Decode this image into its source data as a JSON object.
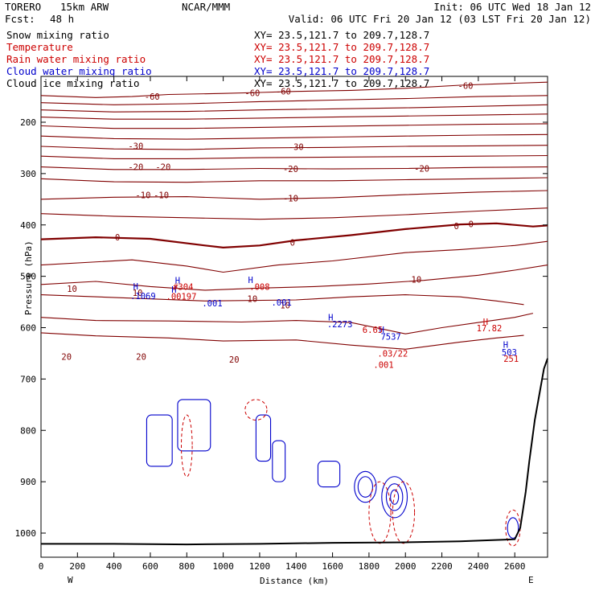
{
  "header": {
    "model": "TORERO",
    "resolution": "15km ARW",
    "org": "NCAR/MMM",
    "init": "Init: 06 UTC Wed 18 Jan 12",
    "fcst_label": "Fcst:",
    "fcst_value": "48 h",
    "valid": "Valid: 06 UTC Fri 20 Jan 12 (03 LST Fri 20 Jan 12)"
  },
  "legend": [
    {
      "label": "Snow mixing ratio",
      "color": "#000000",
      "xy": "XY=  23.5,121.7 to 209.7,128.7",
      "xy_color": "#000000"
    },
    {
      "label": "Temperature",
      "color": "#cc0000",
      "xy": "XY=  23.5,121.7 to 209.7,128.7",
      "xy_color": "#cc0000"
    },
    {
      "label": "Rain water mixing ratio",
      "color": "#cc0000",
      "xy": "XY=  23.5,121.7 to 209.7,128.7",
      "xy_color": "#cc0000"
    },
    {
      "label": "Cloud water mixing ratio",
      "color": "#0000cc",
      "xy": "XY=  23.5,121.7 to 209.7,128.7",
      "xy_color": "#0000cc"
    },
    {
      "label": "Cloud ice mixing ratio",
      "color": "#000000",
      "xy": "XY=  23.5,121.7 to 209.7,128.7",
      "xy_color": "#000000"
    }
  ],
  "chart_data": {
    "type": "cross-section contour",
    "xlabel": "Distance (km)",
    "ylabel": "Pressure (hPa)",
    "xlim": [
      0,
      2780
    ],
    "ylim": [
      1050,
      120
    ],
    "x_ticks": [
      "0",
      "200",
      "400",
      "600",
      "800",
      "1000",
      "1200",
      "1400",
      "1600",
      "1800",
      "2000",
      "2200",
      "2400",
      "2600"
    ],
    "x_tick_values": [
      0,
      200,
      400,
      600,
      800,
      1000,
      1200,
      1400,
      1600,
      1800,
      2000,
      2200,
      2400,
      2600
    ],
    "y_ticks": [
      "200",
      "300",
      "400",
      "500",
      "600",
      "700",
      "800",
      "900",
      "1000"
    ],
    "y_tick_values": [
      200,
      300,
      400,
      500,
      600,
      700,
      800,
      900,
      1000
    ],
    "x_end_labels": {
      "left": "W",
      "right": "E"
    },
    "colors": {
      "temperature": "#800000",
      "cloud_water": "#0000cc",
      "rain": "#cc0000",
      "terrain": "#000000"
    },
    "temperature_isotherms": [
      {
        "level": "-60",
        "points": [
          [
            0,
            148
          ],
          [
            300,
            152
          ],
          [
            500,
            150
          ],
          [
            700,
            146
          ],
          [
            1000,
            144
          ],
          [
            1200,
            142
          ],
          [
            1400,
            140
          ],
          [
            1700,
            138
          ],
          [
            2000,
            134
          ],
          [
            2300,
            128
          ],
          [
            2600,
            124
          ],
          [
            2780,
            122
          ]
        ]
      },
      {
        "level": "-55",
        "points": [
          [
            0,
            162
          ],
          [
            400,
            166
          ],
          [
            800,
            164
          ],
          [
            1200,
            160
          ],
          [
            1600,
            157
          ],
          [
            2000,
            154
          ],
          [
            2400,
            150
          ],
          [
            2780,
            148
          ]
        ]
      },
      {
        "level": "-50",
        "points": [
          [
            0,
            176
          ],
          [
            400,
            180
          ],
          [
            800,
            179
          ],
          [
            1200,
            176
          ],
          [
            1600,
            174
          ],
          [
            2000,
            172
          ],
          [
            2400,
            169
          ],
          [
            2780,
            166
          ]
        ]
      },
      {
        "level": "-45",
        "points": [
          [
            0,
            190
          ],
          [
            400,
            194
          ],
          [
            800,
            194
          ],
          [
            1200,
            192
          ],
          [
            1600,
            190
          ],
          [
            2000,
            188
          ],
          [
            2400,
            186
          ],
          [
            2780,
            184
          ]
        ]
      },
      {
        "level": "-40",
        "points": [
          [
            0,
            207
          ],
          [
            400,
            212
          ],
          [
            800,
            212
          ],
          [
            1200,
            210
          ],
          [
            1600,
            208
          ],
          [
            2000,
            206
          ],
          [
            2400,
            204
          ],
          [
            2780,
            203
          ]
        ]
      },
      {
        "level": "-35",
        "points": [
          [
            0,
            227
          ],
          [
            400,
            232
          ],
          [
            800,
            233
          ],
          [
            1200,
            231
          ],
          [
            1600,
            229
          ],
          [
            2000,
            227
          ],
          [
            2400,
            225
          ],
          [
            2780,
            224
          ]
        ]
      },
      {
        "level": "-30",
        "points": [
          [
            0,
            247
          ],
          [
            400,
            252
          ],
          [
            800,
            253
          ],
          [
            1200,
            250
          ],
          [
            1600,
            249
          ],
          [
            2000,
            247
          ],
          [
            2400,
            246
          ],
          [
            2780,
            245
          ]
        ]
      },
      {
        "level": "-25",
        "points": [
          [
            0,
            266
          ],
          [
            400,
            271
          ],
          [
            800,
            271
          ],
          [
            1200,
            269
          ],
          [
            1600,
            268
          ],
          [
            2000,
            267
          ],
          [
            2400,
            266
          ],
          [
            2780,
            265
          ]
        ]
      },
      {
        "level": "-20",
        "points": [
          [
            0,
            287
          ],
          [
            400,
            292
          ],
          [
            800,
            292
          ],
          [
            1200,
            290
          ],
          [
            1600,
            291
          ],
          [
            2000,
            290
          ],
          [
            2400,
            288
          ],
          [
            2780,
            287
          ]
        ]
      },
      {
        "level": "-15",
        "points": [
          [
            0,
            310
          ],
          [
            400,
            316
          ],
          [
            800,
            317
          ],
          [
            1200,
            314
          ],
          [
            1600,
            314
          ],
          [
            2000,
            312
          ],
          [
            2400,
            310
          ],
          [
            2780,
            308
          ]
        ]
      },
      {
        "level": "-10",
        "points": [
          [
            0,
            350
          ],
          [
            400,
            346
          ],
          [
            800,
            345
          ],
          [
            1200,
            350
          ],
          [
            1600,
            347
          ],
          [
            2000,
            341
          ],
          [
            2400,
            336
          ],
          [
            2780,
            333
          ]
        ]
      },
      {
        "level": "-5",
        "points": [
          [
            0,
            378
          ],
          [
            400,
            383
          ],
          [
            800,
            386
          ],
          [
            1200,
            389
          ],
          [
            1600,
            386
          ],
          [
            2000,
            380
          ],
          [
            2400,
            373
          ],
          [
            2780,
            367
          ]
        ]
      },
      {
        "level": "0",
        "points": [
          [
            0,
            428
          ],
          [
            300,
            424
          ],
          [
            600,
            427
          ],
          [
            900,
            440
          ],
          [
            1000,
            444
          ],
          [
            1200,
            440
          ],
          [
            1400,
            430
          ],
          [
            1700,
            420
          ],
          [
            2000,
            408
          ],
          [
            2300,
            399
          ],
          [
            2500,
            397
          ],
          [
            2700,
            403
          ],
          [
            2780,
            401
          ]
        ]
      },
      {
        "level": "5",
        "points": [
          [
            0,
            478
          ],
          [
            500,
            468
          ],
          [
            800,
            480
          ],
          [
            1000,
            492
          ],
          [
            1300,
            478
          ],
          [
            1600,
            470
          ],
          [
            2000,
            454
          ],
          [
            2300,
            448
          ],
          [
            2600,
            440
          ],
          [
            2780,
            432
          ]
        ]
      },
      {
        "level": "10",
        "points": [
          [
            0,
            516
          ],
          [
            300,
            510
          ],
          [
            600,
            520
          ],
          [
            900,
            527
          ],
          [
            1200,
            523
          ],
          [
            1500,
            520
          ],
          [
            1800,
            515
          ],
          [
            2100,
            508
          ],
          [
            2400,
            498
          ],
          [
            2600,
            488
          ],
          [
            2780,
            478
          ]
        ]
      },
      {
        "level": "15",
        "points": [
          [
            0,
            536
          ],
          [
            600,
            544
          ],
          [
            900,
            548
          ],
          [
            1400,
            546
          ],
          [
            1700,
            540
          ],
          [
            2000,
            536
          ],
          [
            2300,
            540
          ],
          [
            2500,
            548
          ],
          [
            2650,
            555
          ]
        ]
      },
      {
        "level": "20",
        "points": [
          [
            0,
            580
          ],
          [
            300,
            586
          ],
          [
            700,
            587
          ],
          [
            1100,
            589
          ],
          [
            1400,
            586
          ],
          [
            1700,
            590
          ],
          [
            2000,
            612
          ],
          [
            2200,
            600
          ],
          [
            2400,
            590
          ],
          [
            2600,
            580
          ],
          [
            2700,
            572
          ]
        ]
      },
      {
        "level": "25",
        "points": [
          [
            0,
            610
          ],
          [
            300,
            616
          ],
          [
            700,
            620
          ],
          [
            1000,
            626
          ],
          [
            1400,
            624
          ],
          [
            1700,
            634
          ],
          [
            2000,
            642
          ],
          [
            2300,
            628
          ],
          [
            2500,
            620
          ],
          [
            2650,
            615
          ]
        ]
      }
    ],
    "temperature_labels": [
      {
        "text": "-60",
        "x": 610,
        "y": 150
      },
      {
        "text": "-60",
        "x": 1160,
        "y": 143
      },
      {
        "text": "-60",
        "x": 1330,
        "y": 140
      },
      {
        "text": "-60",
        "x": 2330,
        "y": 129
      },
      {
        "text": "-30",
        "x": 520,
        "y": 246
      },
      {
        "text": "-30",
        "x": 1400,
        "y": 248
      },
      {
        "text": "-20",
        "x": 520,
        "y": 287
      },
      {
        "text": "-20",
        "x": 670,
        "y": 287
      },
      {
        "text": "-20",
        "x": 1370,
        "y": 291
      },
      {
        "text": "-20",
        "x": 2090,
        "y": 290
      },
      {
        "text": "-10",
        "x": 560,
        "y": 342
      },
      {
        "text": "-10",
        "x": 660,
        "y": 342
      },
      {
        "text": "-10",
        "x": 1370,
        "y": 348
      },
      {
        "text": "0",
        "x": 420,
        "y": 424
      },
      {
        "text": "0",
        "x": 1380,
        "y": 434
      },
      {
        "text": "0",
        "x": 2280,
        "y": 402
      },
      {
        "text": "0",
        "x": 2360,
        "y": 398
      },
      {
        "text": "10",
        "x": 170,
        "y": 524
      },
      {
        "text": "10",
        "x": 530,
        "y": 532
      },
      {
        "text": "10",
        "x": 1160,
        "y": 544
      },
      {
        "text": "10",
        "x": 1340,
        "y": 556
      },
      {
        "text": "10",
        "x": 2060,
        "y": 506
      },
      {
        "text": "20",
        "x": 140,
        "y": 656
      },
      {
        "text": "20",
        "x": 550,
        "y": 656
      },
      {
        "text": "20",
        "x": 1060,
        "y": 662
      }
    ],
    "cloud_water_labels": [
      {
        "text": "H",
        "x": 520,
        "y": 519
      },
      {
        "text": ".1069",
        "x": 560,
        "y": 538
      },
      {
        "text": "H",
        "x": 750,
        "y": 508
      },
      {
        "text": "H",
        "x": 730,
        "y": 526
      },
      {
        "text": ".001",
        "x": 940,
        "y": 552
      },
      {
        "text": ".001",
        "x": 1320,
        "y": 551
      },
      {
        "text": "H",
        "x": 1590,
        "y": 580
      },
      {
        "text": ".2273",
        "x": 1640,
        "y": 593
      },
      {
        "text": "H",
        "x": 1870,
        "y": 604
      },
      {
        "text": "7537",
        "x": 1920,
        "y": 617
      },
      {
        "text": "H",
        "x": 2550,
        "y": 633
      },
      {
        "text": "503",
        "x": 2570,
        "y": 648
      },
      {
        "text": "H",
        "x": 1150,
        "y": 507
      }
    ],
    "rain_labels": [
      {
        "text": "#304",
        "x": 780,
        "y": 520
      },
      {
        "text": ".00197",
        "x": 770,
        "y": 539
      },
      {
        "text": ".008",
        "x": 1200,
        "y": 520
      },
      {
        "text": "6.65",
        "x": 1820,
        "y": 604
      },
      {
        "text": ".03/22",
        "x": 1930,
        "y": 650
      },
      {
        "text": ".001",
        "x": 1880,
        "y": 672
      },
      {
        "text": "H",
        "x": 2440,
        "y": 588
      },
      {
        "text": "17.82",
        "x": 2460,
        "y": 601
      },
      {
        "text": "251",
        "x": 2580,
        "y": 660
      }
    ],
    "terrain": [
      [
        0,
        1021
      ],
      [
        400,
        1021
      ],
      [
        800,
        1022
      ],
      [
        1200,
        1021
      ],
      [
        1600,
        1019
      ],
      [
        2000,
        1018
      ],
      [
        2300,
        1016
      ],
      [
        2600,
        1012
      ],
      [
        2630,
        990
      ],
      [
        2660,
        920
      ],
      [
        2680,
        860
      ],
      [
        2710,
        780
      ],
      [
        2760,
        680
      ],
      [
        2780,
        660
      ]
    ]
  }
}
